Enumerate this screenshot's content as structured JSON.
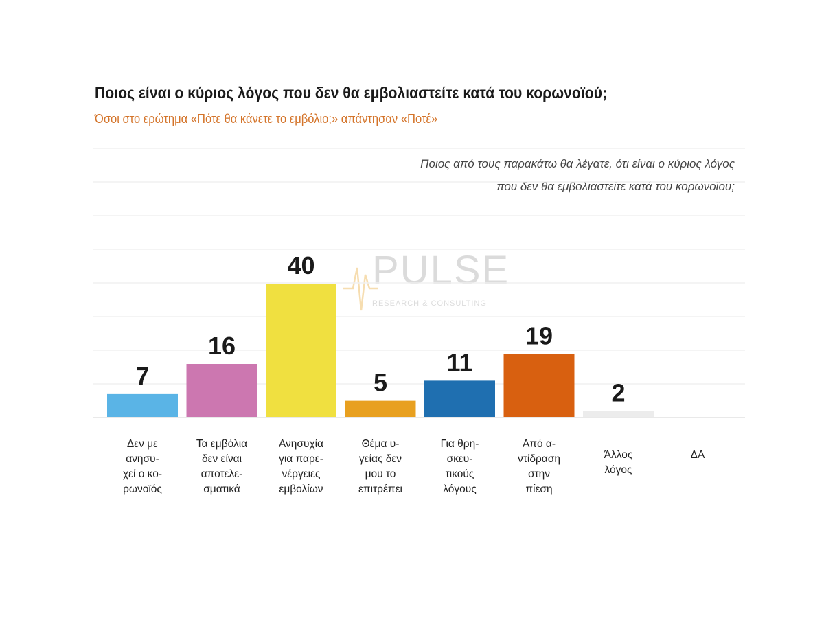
{
  "header": {
    "title": "Ποιος είναι ο κύριος λόγος που δεν θα εμβολιαστείτε κατά του κορωνοϊού;",
    "subtitle": "Όσοι στο ερώτημα «Πότε θα κάνετε το εμβόλιο;» απάντησαν «Ποτέ»",
    "question_lines": [
      "Ποιος από τους παρακάτω θα λέγατε, ότι είναι ο κύριος λόγος",
      "που δεν θα εμβολιαστείτε κατά του κορωνοϊου;"
    ]
  },
  "watermark": {
    "word": "PULSE",
    "tagline": "RESEARCH & CONSULTING"
  },
  "chart_data": {
    "type": "bar",
    "categories": [
      "Δεν με ανησυχεί ο κορωνοϊός",
      "Τα εμβόλια δεν είναι αποτελεσματικά",
      "Ανησυχία για παρενέργειες εμβολίων",
      "Θέμα υγείας δεν μου το επιτρέπει",
      "Για θρησκευτικούς λόγους",
      "Από αντίδραση στην πίεση",
      "Άλλος λόγος",
      "ΔΑ"
    ],
    "category_label_lines": [
      [
        "Δεν με",
        "ανησυ-",
        "χεί ο κο-",
        "ρωνοϊός"
      ],
      [
        "Τα εμβόλια",
        "δεν είναι",
        "αποτελε-",
        "σματικά"
      ],
      [
        "Ανησυχία",
        "για παρε-",
        "νέργειες",
        "εμβολίων"
      ],
      [
        "Θέμα υ-",
        "γείας δεν",
        "μου το",
        "επιτρέπει"
      ],
      [
        "Για θρη-",
        "σκευ-",
        "τικούς",
        "λόγους"
      ],
      [
        "Από α-",
        "ντίδραση",
        "στην",
        "πίεση"
      ],
      [
        "Άλλος",
        "λόγος"
      ],
      [
        "ΔΑ"
      ]
    ],
    "values": [
      7,
      16,
      40,
      5,
      11,
      19,
      2,
      null
    ],
    "value_labels": [
      "7",
      "16",
      "40",
      "5",
      "11",
      "19",
      "2",
      ""
    ],
    "colors": [
      "#5ab4e6",
      "#cc77b0",
      "#f0e040",
      "#e8a020",
      "#1f6fb0",
      "#d86010",
      "#ececec",
      "#ffffff"
    ],
    "title": "Ποιος είναι ο κύριος λόγος που δεν θα εμβολιαστείτε κατά του κορωνοϊού;",
    "ylim": [
      0,
      50
    ],
    "grid": true,
    "legend": "none"
  }
}
